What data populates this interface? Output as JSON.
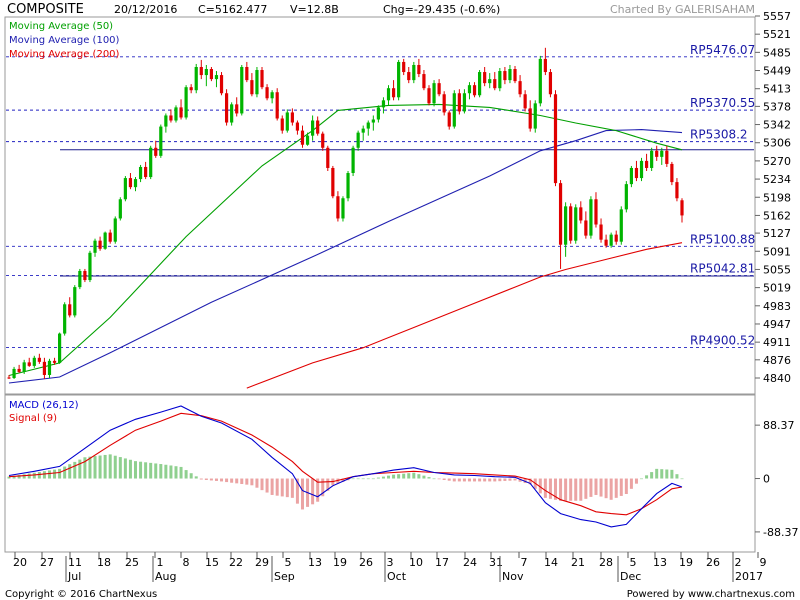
{
  "header": {
    "symbol": "COMPOSITE",
    "date": "20/12/2016",
    "close_label": "C=5162.477",
    "volume_label": "V=12.8B",
    "change_label": "Chg=-29.435 (-0.6%)",
    "credit": "Charted By GALERISAHAM"
  },
  "footer": {
    "copyright": "Copyright © 2016 ChartNexus",
    "powered": "Powered by www.chartnexus.com"
  },
  "colors": {
    "up": "#00b400",
    "down": "#e00000",
    "ma50": "#00a000",
    "ma100": "#2020b0",
    "ma200": "#e00000",
    "macd": "#0000d0",
    "signal": "#e00000",
    "hist_up": "#8fd08f",
    "hist_down": "#eba3a3",
    "level_line": "#2020c0"
  },
  "chart_data": {
    "type": "candlestick",
    "price_axis": {
      "ticks": [
        5557,
        5521,
        5485,
        5449,
        5413,
        5378,
        5342,
        5306,
        5270,
        5234,
        5198,
        5162,
        5127,
        5091,
        5055,
        5019,
        4983,
        4947,
        4911,
        4876,
        4840
      ],
      "labels": [
        "5557",
        "5521",
        "5485",
        "5449",
        "5413",
        "5378",
        "5342",
        "5306",
        "5270",
        "5234",
        "5198",
        "5162",
        "5127",
        "5091",
        "5055",
        "5019",
        "4983",
        "4947",
        "4911",
        "4876",
        "4840"
      ]
    },
    "x_axis": {
      "day_labels": [
        "20",
        "27",
        "11",
        "18",
        "25",
        "1",
        "8",
        "15",
        "22",
        "29",
        "5",
        "13",
        "19",
        "26",
        "3",
        "10",
        "17",
        "24",
        "31",
        "7",
        "14",
        "21",
        "28",
        "5",
        "13",
        "19",
        "26",
        "2",
        "9"
      ],
      "month_labels": [
        "Jul",
        "Aug",
        "Sep",
        "Oct",
        "Nov",
        "Dec",
        "2017"
      ]
    },
    "legend": [
      {
        "name": "Moving Average (50)",
        "color": "#00a000"
      },
      {
        "name": "Moving Average (100)",
        "color": "#2020b0"
      },
      {
        "name": "Moving Average (200)",
        "color": "#e00000"
      }
    ],
    "levels": [
      {
        "label": "RP5476.07",
        "value": 5476.07,
        "style": "dashed"
      },
      {
        "label": "RP5370.55",
        "value": 5370.55,
        "style": "dashed"
      },
      {
        "label": "RP5308.2",
        "value": 5308.2,
        "style": "dashed"
      },
      {
        "label": "RP5100.88",
        "value": 5100.88,
        "style": "dashed"
      },
      {
        "label": "RP5042.81",
        "value": 5042.81,
        "style": "dashed"
      },
      {
        "label": "RP4900.52",
        "value": 4900.52,
        "style": "dashed"
      }
    ],
    "solid_levels": [
      5292,
      5042
    ],
    "candles": [
      [
        4841,
        4846,
        4838,
        4840
      ],
      [
        4840,
        4862,
        4838,
        4858
      ],
      [
        4858,
        4866,
        4850,
        4852
      ],
      [
        4852,
        4876,
        4848,
        4871
      ],
      [
        4871,
        4880,
        4862,
        4864
      ],
      [
        4864,
        4884,
        4860,
        4880
      ],
      [
        4880,
        4888,
        4868,
        4872
      ],
      [
        4872,
        4880,
        4838,
        4846
      ],
      [
        4846,
        4878,
        4840,
        4874
      ],
      [
        4874,
        4880,
        4866,
        4870
      ],
      [
        4870,
        4930,
        4868,
        4928
      ],
      [
        4928,
        4990,
        4924,
        4986
      ],
      [
        4986,
        5000,
        4960,
        4964
      ],
      [
        4964,
        5024,
        4960,
        5020
      ],
      [
        5020,
        5056,
        5016,
        5052
      ],
      [
        5052,
        5056,
        5030,
        5034
      ],
      [
        5034,
        5092,
        5030,
        5088
      ],
      [
        5088,
        5116,
        5080,
        5112
      ],
      [
        5112,
        5120,
        5092,
        5096
      ],
      [
        5096,
        5130,
        5094,
        5128
      ],
      [
        5128,
        5134,
        5106,
        5110
      ],
      [
        5110,
        5160,
        5106,
        5156
      ],
      [
        5156,
        5198,
        5152,
        5194
      ],
      [
        5194,
        5240,
        5190,
        5236
      ],
      [
        5236,
        5246,
        5214,
        5218
      ],
      [
        5218,
        5238,
        5210,
        5234
      ],
      [
        5234,
        5262,
        5228,
        5258
      ],
      [
        5258,
        5268,
        5234,
        5238
      ],
      [
        5238,
        5300,
        5234,
        5296
      ],
      [
        5296,
        5310,
        5276,
        5280
      ],
      [
        5280,
        5342,
        5276,
        5338
      ],
      [
        5338,
        5364,
        5326,
        5360
      ],
      [
        5360,
        5372,
        5346,
        5350
      ],
      [
        5350,
        5380,
        5346,
        5376
      ],
      [
        5376,
        5392,
        5352,
        5356
      ],
      [
        5356,
        5420,
        5352,
        5416
      ],
      [
        5416,
        5422,
        5404,
        5410
      ],
      [
        5410,
        5462,
        5404,
        5456
      ],
      [
        5456,
        5470,
        5432,
        5440
      ],
      [
        5440,
        5460,
        5418,
        5452
      ],
      [
        5452,
        5456,
        5428,
        5432
      ],
      [
        5432,
        5448,
        5416,
        5440
      ],
      [
        5440,
        5446,
        5400,
        5404
      ],
      [
        5404,
        5412,
        5340,
        5346
      ],
      [
        5346,
        5386,
        5340,
        5382
      ],
      [
        5382,
        5396,
        5358,
        5364
      ],
      [
        5364,
        5460,
        5360,
        5456
      ],
      [
        5456,
        5466,
        5426,
        5430
      ],
      [
        5430,
        5444,
        5398,
        5402
      ],
      [
        5402,
        5456,
        5396,
        5450
      ],
      [
        5450,
        5456,
        5412,
        5416
      ],
      [
        5416,
        5422,
        5390,
        5394
      ],
      [
        5394,
        5410,
        5384,
        5406
      ],
      [
        5406,
        5414,
        5350,
        5354
      ],
      [
        5354,
        5360,
        5324,
        5330
      ],
      [
        5330,
        5372,
        5326,
        5366
      ],
      [
        5366,
        5374,
        5340,
        5346
      ],
      [
        5346,
        5350,
        5322,
        5330
      ],
      [
        5330,
        5340,
        5296,
        5302
      ],
      [
        5302,
        5326,
        5300,
        5320
      ],
      [
        5320,
        5360,
        5310,
        5350
      ],
      [
        5350,
        5358,
        5320,
        5324
      ],
      [
        5324,
        5328,
        5290,
        5296
      ],
      [
        5296,
        5300,
        5250,
        5256
      ],
      [
        5256,
        5260,
        5196,
        5200
      ],
      [
        5200,
        5210,
        5150,
        5156
      ],
      [
        5156,
        5200,
        5150,
        5196
      ],
      [
        5196,
        5250,
        5190,
        5246
      ],
      [
        5246,
        5300,
        5240,
        5296
      ],
      [
        5296,
        5330,
        5290,
        5326
      ],
      [
        5326,
        5340,
        5310,
        5334
      ],
      [
        5334,
        5350,
        5320,
        5346
      ],
      [
        5346,
        5360,
        5330,
        5352
      ],
      [
        5352,
        5380,
        5346,
        5376
      ],
      [
        5376,
        5396,
        5364,
        5390
      ],
      [
        5390,
        5420,
        5380,
        5414
      ],
      [
        5414,
        5430,
        5390,
        5396
      ],
      [
        5396,
        5470,
        5390,
        5466
      ],
      [
        5466,
        5472,
        5440,
        5446
      ],
      [
        5446,
        5456,
        5424,
        5430
      ],
      [
        5430,
        5466,
        5424,
        5460
      ],
      [
        5460,
        5472,
        5436,
        5442
      ],
      [
        5442,
        5450,
        5410,
        5414
      ],
      [
        5414,
        5420,
        5380,
        5384
      ],
      [
        5384,
        5430,
        5378,
        5424
      ],
      [
        5424,
        5432,
        5398,
        5402
      ],
      [
        5402,
        5408,
        5360,
        5366
      ],
      [
        5366,
        5370,
        5332,
        5338
      ],
      [
        5338,
        5410,
        5334,
        5404
      ],
      [
        5404,
        5412,
        5362,
        5368
      ],
      [
        5368,
        5412,
        5364,
        5404
      ],
      [
        5404,
        5426,
        5392,
        5420
      ],
      [
        5420,
        5426,
        5396,
        5400
      ],
      [
        5400,
        5450,
        5396,
        5446
      ],
      [
        5446,
        5456,
        5418,
        5424
      ],
      [
        5424,
        5444,
        5414,
        5432
      ],
      [
        5432,
        5446,
        5410,
        5414
      ],
      [
        5414,
        5454,
        5408,
        5448
      ],
      [
        5448,
        5456,
        5422,
        5430
      ],
      [
        5430,
        5460,
        5424,
        5452
      ],
      [
        5452,
        5458,
        5424,
        5428
      ],
      [
        5428,
        5440,
        5396,
        5402
      ],
      [
        5402,
        5410,
        5368,
        5374
      ],
      [
        5374,
        5390,
        5328,
        5334
      ],
      [
        5334,
        5390,
        5326,
        5384
      ],
      [
        5384,
        5478,
        5378,
        5472
      ],
      [
        5472,
        5494,
        5440,
        5446
      ],
      [
        5446,
        5452,
        5396,
        5402
      ],
      [
        5402,
        5410,
        5220,
        5226
      ],
      [
        5226,
        5232,
        5056,
        5104
      ],
      [
        5104,
        5188,
        5080,
        5180
      ],
      [
        5180,
        5186,
        5106,
        5112
      ],
      [
        5112,
        5184,
        5106,
        5178
      ],
      [
        5178,
        5190,
        5146,
        5152
      ],
      [
        5152,
        5170,
        5116,
        5122
      ],
      [
        5122,
        5200,
        5116,
        5194
      ],
      [
        5194,
        5208,
        5138,
        5144
      ],
      [
        5144,
        5156,
        5108,
        5114
      ],
      [
        5114,
        5124,
        5098,
        5102
      ],
      [
        5102,
        5128,
        5098,
        5124
      ],
      [
        5124,
        5132,
        5104,
        5110
      ],
      [
        5110,
        5180,
        5104,
        5174
      ],
      [
        5174,
        5230,
        5168,
        5224
      ],
      [
        5224,
        5260,
        5218,
        5256
      ],
      [
        5256,
        5270,
        5230,
        5236
      ],
      [
        5236,
        5276,
        5230,
        5270
      ],
      [
        5270,
        5284,
        5250,
        5256
      ],
      [
        5256,
        5296,
        5250,
        5290
      ],
      [
        5290,
        5300,
        5270,
        5278
      ],
      [
        5278,
        5296,
        5262,
        5290
      ],
      [
        5290,
        5300,
        5258,
        5264
      ],
      [
        5264,
        5268,
        5222,
        5228
      ],
      [
        5228,
        5236,
        5190,
        5196
      ],
      [
        5192,
        5196,
        5148,
        5162
      ]
    ],
    "ma50": [
      [
        0,
        4845
      ],
      [
        10,
        4870
      ],
      [
        20,
        4960
      ],
      [
        35,
        5120
      ],
      [
        50,
        5260
      ],
      [
        60,
        5330
      ],
      [
        65,
        5370
      ],
      [
        75,
        5380
      ],
      [
        85,
        5382
      ],
      [
        95,
        5376
      ],
      [
        105,
        5360
      ],
      [
        112,
        5345
      ],
      [
        120,
        5330
      ],
      [
        128,
        5305
      ],
      [
        133,
        5292
      ]
    ],
    "ma100": [
      [
        0,
        4830
      ],
      [
        10,
        4842
      ],
      [
        20,
        4890
      ],
      [
        40,
        4990
      ],
      [
        60,
        5080
      ],
      [
        75,
        5150
      ],
      [
        85,
        5195
      ],
      [
        95,
        5240
      ],
      [
        105,
        5290
      ],
      [
        112,
        5310
      ],
      [
        118,
        5330
      ],
      [
        125,
        5332
      ],
      [
        133,
        5326
      ]
    ],
    "ma200": [
      [
        47,
        4820
      ],
      [
        60,
        4870
      ],
      [
        70,
        4900
      ],
      [
        80,
        4940
      ],
      [
        90,
        4980
      ],
      [
        100,
        5020
      ],
      [
        105,
        5040
      ],
      [
        110,
        5055
      ],
      [
        118,
        5075
      ],
      [
        126,
        5095
      ],
      [
        133,
        5108
      ]
    ],
    "macd_panel": {
      "legend": [
        {
          "name": "MACD (26,12)",
          "color": "#0000d0"
        },
        {
          "name": "Signal (9)",
          "color": "#e00000"
        }
      ],
      "ticks": [
        88.37,
        0,
        -88.37
      ],
      "tick_labels": [
        "88.37",
        "0",
        "-88.37"
      ],
      "ylim": [
        -115,
        130
      ],
      "macd": [
        [
          0,
          5
        ],
        [
          5,
          12
        ],
        [
          10,
          20
        ],
        [
          15,
          50
        ],
        [
          20,
          80
        ],
        [
          25,
          98
        ],
        [
          30,
          110
        ],
        [
          34,
          120
        ],
        [
          38,
          103
        ],
        [
          42,
          92
        ],
        [
          48,
          65
        ],
        [
          52,
          35
        ],
        [
          56,
          8
        ],
        [
          58,
          -20
        ],
        [
          61,
          -30
        ],
        [
          64,
          -12
        ],
        [
          68,
          3
        ],
        [
          72,
          8
        ],
        [
          76,
          14
        ],
        [
          80,
          18
        ],
        [
          84,
          10
        ],
        [
          88,
          6
        ],
        [
          92,
          5
        ],
        [
          96,
          3
        ],
        [
          100,
          2
        ],
        [
          103,
          -8
        ],
        [
          106,
          -40
        ],
        [
          109,
          -58
        ],
        [
          113,
          -68
        ],
        [
          116,
          -72
        ],
        [
          119,
          -80
        ],
        [
          122,
          -76
        ],
        [
          125,
          -50
        ],
        [
          128,
          -25
        ],
        [
          131,
          -8
        ],
        [
          133,
          -14
        ]
      ],
      "signal": [
        [
          0,
          3
        ],
        [
          5,
          6
        ],
        [
          10,
          10
        ],
        [
          15,
          28
        ],
        [
          20,
          55
        ],
        [
          25,
          80
        ],
        [
          30,
          95
        ],
        [
          34,
          108
        ],
        [
          38,
          104
        ],
        [
          42,
          95
        ],
        [
          48,
          72
        ],
        [
          52,
          52
        ],
        [
          56,
          28
        ],
        [
          58,
          12
        ],
        [
          61,
          -6
        ],
        [
          64,
          -5
        ],
        [
          68,
          3
        ],
        [
          72,
          8
        ],
        [
          76,
          10
        ],
        [
          80,
          12
        ],
        [
          84,
          10
        ],
        [
          88,
          9
        ],
        [
          92,
          8
        ],
        [
          96,
          6
        ],
        [
          100,
          4
        ],
        [
          103,
          -2
        ],
        [
          106,
          -20
        ],
        [
          109,
          -35
        ],
        [
          113,
          -45
        ],
        [
          116,
          -55
        ],
        [
          119,
          -58
        ],
        [
          122,
          -60
        ],
        [
          125,
          -50
        ],
        [
          128,
          -35
        ],
        [
          131,
          -17
        ],
        [
          133,
          -14
        ]
      ]
    }
  }
}
